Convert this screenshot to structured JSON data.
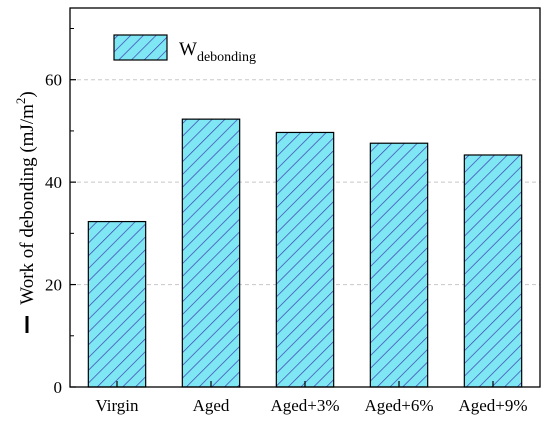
{
  "chart_data": {
    "type": "bar",
    "categories": [
      "Virgin",
      "Aged",
      "Aged+3%",
      "Aged+6%",
      "Aged+9%"
    ],
    "series": [
      {
        "name_main": "W",
        "name_sub": "debonding",
        "values": [
          32.3,
          52.3,
          49.7,
          47.6,
          45.3
        ]
      }
    ],
    "ylabel": "Work of debonding (mJ/m²)",
    "ylabel_main": "Work of debonding (mJ/m",
    "ylabel_sup": "2",
    "ylabel_close": ")",
    "ylim": [
      0,
      74
    ],
    "yticks": [
      "0",
      "20",
      "40",
      "60"
    ],
    "grid": true,
    "legend_placement": "top-left",
    "colors": {
      "bar_fill": "#7fe7f3",
      "hatch": "#3a3fb0",
      "axis": "#000000",
      "grid": "#c8c8c8"
    }
  }
}
